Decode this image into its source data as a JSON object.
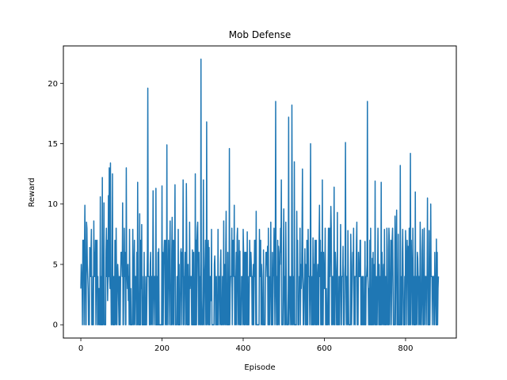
{
  "chart_data": {
    "type": "line",
    "title": "Mob Defense",
    "xlabel": "Episode",
    "ylabel": "Reward",
    "xlim": [
      -43,
      925
    ],
    "ylim": [
      -1.1,
      23.1
    ],
    "xticks": [
      0,
      200,
      400,
      600,
      800
    ],
    "yticks": [
      0,
      5,
      10,
      15,
      20
    ],
    "grid": false,
    "legend": "none",
    "series_color": "#1f77b4",
    "episode_start": 0,
    "episode_end": 881,
    "peaks": [
      {
        "x": 2,
        "y": 4
      },
      {
        "x": 5,
        "y": 7
      },
      {
        "x": 10,
        "y": 9.9
      },
      {
        "x": 14,
        "y": 8.5
      },
      {
        "x": 22,
        "y": 6.4
      },
      {
        "x": 26,
        "y": 7.9
      },
      {
        "x": 32,
        "y": 8.6
      },
      {
        "x": 40,
        "y": 7
      },
      {
        "x": 48,
        "y": 10.6
      },
      {
        "x": 53,
        "y": 12.2
      },
      {
        "x": 57,
        "y": 10.1
      },
      {
        "x": 63,
        "y": 8
      },
      {
        "x": 68,
        "y": 10.7
      },
      {
        "x": 70,
        "y": 13
      },
      {
        "x": 73,
        "y": 13.4
      },
      {
        "x": 78,
        "y": 12.5
      },
      {
        "x": 85,
        "y": 4
      },
      {
        "x": 95,
        "y": 4
      },
      {
        "x": 103,
        "y": 10.1
      },
      {
        "x": 112,
        "y": 13
      },
      {
        "x": 120,
        "y": 7.9
      },
      {
        "x": 128,
        "y": 7.9
      },
      {
        "x": 135,
        "y": 4
      },
      {
        "x": 140,
        "y": 11.8
      },
      {
        "x": 145,
        "y": 9.2
      },
      {
        "x": 150,
        "y": 8.3
      },
      {
        "x": 165,
        "y": 19.6
      },
      {
        "x": 172,
        "y": 6
      },
      {
        "x": 178,
        "y": 11.1
      },
      {
        "x": 185,
        "y": 11.3
      },
      {
        "x": 192,
        "y": 6.3
      },
      {
        "x": 200,
        "y": 11.5
      },
      {
        "x": 206,
        "y": 7
      },
      {
        "x": 212,
        "y": 14.9
      },
      {
        "x": 220,
        "y": 8.6
      },
      {
        "x": 225,
        "y": 8.9
      },
      {
        "x": 232,
        "y": 11.6
      },
      {
        "x": 240,
        "y": 7.9
      },
      {
        "x": 247,
        "y": 6.3
      },
      {
        "x": 252,
        "y": 12
      },
      {
        "x": 260,
        "y": 11.7
      },
      {
        "x": 268,
        "y": 8.5
      },
      {
        "x": 275,
        "y": 6.2
      },
      {
        "x": 282,
        "y": 12.5
      },
      {
        "x": 288,
        "y": 8.5
      },
      {
        "x": 296,
        "y": 22
      },
      {
        "x": 302,
        "y": 12
      },
      {
        "x": 310,
        "y": 16.8
      },
      {
        "x": 316,
        "y": 6.4
      },
      {
        "x": 322,
        "y": 7.9
      },
      {
        "x": 330,
        "y": 5.7
      },
      {
        "x": 338,
        "y": 7.9
      },
      {
        "x": 345,
        "y": 6.2
      },
      {
        "x": 352,
        "y": 8.6
      },
      {
        "x": 358,
        "y": 9.4
      },
      {
        "x": 366,
        "y": 14.6
      },
      {
        "x": 372,
        "y": 8
      },
      {
        "x": 378,
        "y": 9.9
      },
      {
        "x": 385,
        "y": 7.3
      },
      {
        "x": 392,
        "y": 6.1
      },
      {
        "x": 400,
        "y": 7.9
      },
      {
        "x": 410,
        "y": 7.7
      },
      {
        "x": 418,
        "y": 4
      },
      {
        "x": 425,
        "y": 5
      },
      {
        "x": 432,
        "y": 9.4
      },
      {
        "x": 440,
        "y": 7.9
      },
      {
        "x": 450,
        "y": 6.2
      },
      {
        "x": 460,
        "y": 6.5
      },
      {
        "x": 468,
        "y": 8.5
      },
      {
        "x": 475,
        "y": 4.1
      },
      {
        "x": 480,
        "y": 18.5
      },
      {
        "x": 487,
        "y": 6.5
      },
      {
        "x": 494,
        "y": 12
      },
      {
        "x": 500,
        "y": 9.6
      },
      {
        "x": 505,
        "y": 8.5
      },
      {
        "x": 512,
        "y": 17.2
      },
      {
        "x": 520,
        "y": 18.2
      },
      {
        "x": 526,
        "y": 13.5
      },
      {
        "x": 532,
        "y": 9.4
      },
      {
        "x": 540,
        "y": 8
      },
      {
        "x": 546,
        "y": 12.9
      },
      {
        "x": 552,
        "y": 6.3
      },
      {
        "x": 560,
        "y": 7.9
      },
      {
        "x": 566,
        "y": 15
      },
      {
        "x": 572,
        "y": 7.2
      },
      {
        "x": 580,
        "y": 7
      },
      {
        "x": 588,
        "y": 9.9
      },
      {
        "x": 595,
        "y": 12
      },
      {
        "x": 602,
        "y": 8
      },
      {
        "x": 610,
        "y": 8
      },
      {
        "x": 616,
        "y": 9.8
      },
      {
        "x": 624,
        "y": 11.4
      },
      {
        "x": 632,
        "y": 9.3
      },
      {
        "x": 640,
        "y": 8.3
      },
      {
        "x": 646,
        "y": 6.5
      },
      {
        "x": 652,
        "y": 15.1
      },
      {
        "x": 658,
        "y": 7.8
      },
      {
        "x": 665,
        "y": 7.5
      },
      {
        "x": 672,
        "y": 8
      },
      {
        "x": 680,
        "y": 8.5
      },
      {
        "x": 688,
        "y": 7
      },
      {
        "x": 694,
        "y": 4
      },
      {
        "x": 700,
        "y": 6.9
      },
      {
        "x": 706,
        "y": 18.5
      },
      {
        "x": 712,
        "y": 7
      },
      {
        "x": 718,
        "y": 5.5
      },
      {
        "x": 725,
        "y": 11.9
      },
      {
        "x": 732,
        "y": 8
      },
      {
        "x": 740,
        "y": 11.8
      },
      {
        "x": 748,
        "y": 7.9
      },
      {
        "x": 755,
        "y": 6.3
      },
      {
        "x": 762,
        "y": 4
      },
      {
        "x": 768,
        "y": 8
      },
      {
        "x": 774,
        "y": 9
      },
      {
        "x": 778,
        "y": 9.5
      },
      {
        "x": 782,
        "y": 7.5
      },
      {
        "x": 787,
        "y": 13.2
      },
      {
        "x": 793,
        "y": 7.9
      },
      {
        "x": 800,
        "y": 7.8
      },
      {
        "x": 806,
        "y": 6.5
      },
      {
        "x": 812,
        "y": 14.2
      },
      {
        "x": 818,
        "y": 8
      },
      {
        "x": 824,
        "y": 11
      },
      {
        "x": 830,
        "y": 5.5
      },
      {
        "x": 836,
        "y": 8.5
      },
      {
        "x": 842,
        "y": 7.9
      },
      {
        "x": 848,
        "y": 4
      },
      {
        "x": 854,
        "y": 10.5
      },
      {
        "x": 858,
        "y": 7.8
      },
      {
        "x": 862,
        "y": 10
      },
      {
        "x": 868,
        "y": 4
      },
      {
        "x": 872,
        "y": 6
      },
      {
        "x": 876,
        "y": 7.1
      },
      {
        "x": 880,
        "y": 3
      }
    ]
  }
}
